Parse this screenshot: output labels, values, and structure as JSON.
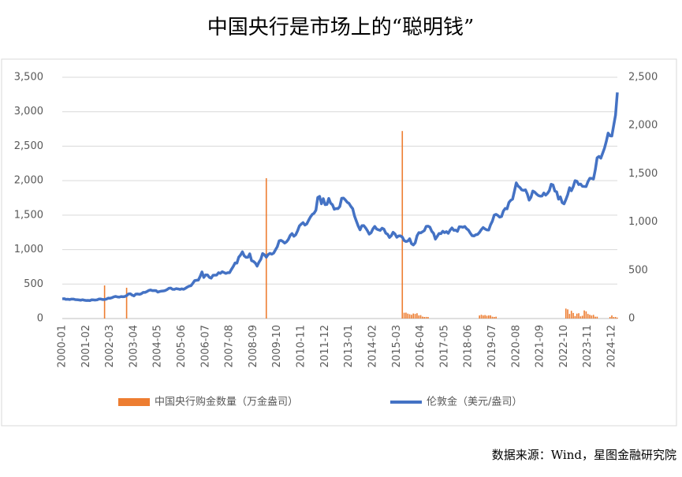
{
  "chart_data": {
    "type": "combo",
    "title": "中国央行是市场上的“聪明钱”",
    "source": "数据来源：Wind，星图金融研究院",
    "categories": [
      "2000-01",
      null,
      null,
      null,
      null,
      null,
      null,
      null,
      null,
      null,
      null,
      null,
      null,
      "2001-02",
      null,
      null,
      null,
      null,
      null,
      null,
      null,
      null,
      null,
      null,
      null,
      null,
      "2002-03",
      null,
      null,
      null,
      null,
      null,
      null,
      null,
      null,
      null,
      null,
      null,
      null,
      "2003-04",
      null,
      null,
      null,
      null,
      null,
      null,
      null,
      null,
      null,
      null,
      null,
      null,
      "2004-05",
      null,
      null,
      null,
      null,
      null,
      null,
      null,
      null,
      null,
      null,
      null,
      null,
      "2005-06",
      null,
      null,
      null,
      null,
      null,
      null,
      null,
      null,
      null,
      null,
      null,
      null,
      "2006-07",
      null,
      null,
      null,
      null,
      null,
      null,
      null,
      null,
      null,
      null,
      null,
      null,
      "2007-08",
      null,
      null,
      null,
      null,
      null,
      null,
      null,
      null,
      null,
      null,
      null,
      null,
      "2008-09",
      null,
      null,
      null,
      null,
      null,
      null,
      null,
      null,
      null,
      null,
      null,
      null,
      "2009-10",
      null,
      null,
      null,
      null,
      null,
      null,
      null,
      null,
      null,
      null,
      null,
      null,
      "2010-11",
      null,
      null,
      null,
      null,
      null,
      null,
      null,
      null,
      null,
      null,
      null,
      null,
      "2011-12",
      null,
      null,
      null,
      null,
      null,
      null,
      null,
      null,
      null,
      null,
      null,
      null,
      "2013-01",
      null,
      null,
      null,
      null,
      null,
      null,
      null,
      null,
      null,
      null,
      null,
      null,
      "2014-02",
      null,
      null,
      null,
      null,
      null,
      null,
      null,
      null,
      null,
      null,
      null,
      null,
      "2015-03",
      null,
      null,
      null,
      null,
      null,
      null,
      null,
      null,
      null,
      null,
      null,
      null,
      "2016-04",
      null,
      null,
      null,
      null,
      null,
      null,
      null,
      null,
      null,
      null,
      null,
      null,
      "2017-05",
      null,
      null,
      null,
      null,
      null,
      null,
      null,
      null,
      null,
      null,
      null,
      null,
      "2018-06",
      null,
      null,
      null,
      null,
      null,
      null,
      null,
      null,
      null,
      null,
      null,
      null,
      "2019-07",
      null,
      null,
      null,
      null,
      null,
      null,
      null,
      null,
      null,
      null,
      null,
      null,
      "2020-08",
      null,
      null,
      null,
      null,
      null,
      null,
      null,
      null,
      null,
      null,
      null,
      null,
      "2021-09",
      null,
      null,
      null,
      null,
      null,
      null,
      null,
      null,
      null,
      null,
      null,
      null,
      "2022-10",
      null,
      null,
      null,
      null,
      null,
      null,
      null,
      null,
      null,
      null,
      null,
      null,
      "2023-11",
      null,
      null,
      null,
      null,
      null,
      null,
      null,
      null,
      null,
      null,
      null,
      null,
      "2024-12",
      null,
      null,
      null
    ],
    "series": [
      {
        "name": "中国央行购金数量（万金盎司）",
        "type": "bar",
        "axis": "y2",
        "color": "#ed7d31",
        "values": [
          null,
          null,
          null,
          null,
          null,
          null,
          null,
          null,
          null,
          null,
          null,
          null,
          null,
          null,
          null,
          null,
          null,
          null,
          null,
          null,
          null,
          null,
          null,
          343,
          null,
          null,
          null,
          null,
          null,
          null,
          null,
          null,
          null,
          null,
          null,
          319,
          null,
          null,
          null,
          null,
          null,
          null,
          null,
          null,
          null,
          null,
          null,
          null,
          null,
          null,
          null,
          null,
          null,
          null,
          null,
          null,
          null,
          null,
          null,
          null,
          null,
          null,
          null,
          null,
          null,
          null,
          null,
          null,
          null,
          null,
          null,
          null,
          null,
          null,
          null,
          null,
          null,
          null,
          null,
          null,
          null,
          null,
          null,
          null,
          null,
          null,
          null,
          null,
          null,
          null,
          null,
          null,
          null,
          null,
          null,
          null,
          null,
          null,
          null,
          null,
          null,
          null,
          null,
          null,
          null,
          null,
          null,
          null,
          null,
          null,
          null,
          1454,
          null,
          null,
          null,
          null,
          null,
          null,
          null,
          null,
          null,
          null,
          null,
          null,
          null,
          null,
          null,
          null,
          null,
          null,
          null,
          null,
          null,
          null,
          null,
          null,
          null,
          null,
          null,
          null,
          null,
          null,
          null,
          null,
          null,
          null,
          null,
          null,
          null,
          null,
          null,
          null,
          null,
          null,
          null,
          null,
          null,
          null,
          null,
          null,
          null,
          null,
          null,
          null,
          null,
          null,
          null,
          null,
          null,
          null,
          null,
          null,
          null,
          null,
          null,
          null,
          null,
          null,
          null,
          null,
          null,
          null,
          null,
          null,
          null,
          1943,
          60,
          61,
          51,
          45,
          39,
          52,
          48,
          55,
          32,
          35,
          20,
          16,
          17,
          16,
          null,
          null,
          null,
          null,
          null,
          null,
          null,
          null,
          null,
          null,
          null,
          null,
          null,
          null,
          null,
          null,
          null,
          null,
          null,
          null,
          null,
          null,
          null,
          null,
          null,
          null,
          null,
          32,
          39,
          32,
          36,
          29,
          32,
          33,
          19,
          16,
          19,
          null,
          null,
          null,
          null,
          null,
          null,
          null,
          null,
          null,
          null,
          null,
          null,
          null,
          null,
          null,
          null,
          null,
          null,
          null,
          null,
          null,
          null,
          null,
          null,
          null,
          null,
          null,
          null,
          null,
          null,
          null,
          null,
          null,
          null,
          null,
          null,
          null,
          103,
          95,
          48,
          80,
          58,
          26,
          51,
          55,
          23,
          29,
          84,
          74,
          48,
          39,
          32,
          38,
          19,
          19,
          null,
          null,
          null,
          null,
          null,
          null,
          16,
          32,
          16,
          16,
          9
        ]
      },
      {
        "name": "伦敦金（美元/盎司）",
        "type": "line",
        "color": "#4472c4",
        "values": [
          285,
          288,
          278,
          280,
          275,
          282,
          282,
          275,
          273,
          270,
          266,
          272,
          266,
          262,
          263,
          260,
          272,
          270,
          268,
          272,
          283,
          283,
          276,
          276,
          282,
          296,
          294,
          302,
          314,
          321,
          313,
          310,
          319,
          316,
          319,
          333,
          356,
          359,
          340,
          328,
          355,
          356,
          351,
          360,
          379,
          379,
          390,
          407,
          414,
          405,
          406,
          404,
          384,
          392,
          398,
          400,
          406,
          420,
          439,
          442,
          424,
          423,
          434,
          429,
          422,
          431,
          424,
          438,
          456,
          470,
          476,
          510,
          549,
          555,
          557,
          610,
          676,
          596,
          633,
          632,
          598,
          586,
          627,
          629,
          631,
          664,
          655,
          679,
          667,
          655,
          665,
          665,
          712,
          754,
          806,
          803,
          889,
          922,
          968,
          909,
          888,
          889,
          939,
          839,
          829,
          806,
          760,
          816,
          858,
          943,
          924,
          890,
          928,
          945,
          934,
          949,
          996,
          1043,
          1127,
          1134,
          1118,
          1095,
          1113,
          1148,
          1205,
          1232,
          1193,
          1215,
          1271,
          1343,
          1370,
          1391,
          1356,
          1372,
          1424,
          1473,
          1510,
          1528,
          1572,
          1756,
          1772,
          1665,
          1739,
          1652,
          1656,
          1742,
          1673,
          1650,
          1585,
          1596,
          1594,
          1626,
          1744,
          1747,
          1721,
          1688,
          1670,
          1627,
          1593,
          1487,
          1414,
          1343,
          1286,
          1347,
          1348,
          1316,
          1275,
          1225,
          1244,
          1300,
          1336,
          1299,
          1287,
          1279,
          1311,
          1296,
          1238,
          1222,
          1176,
          1201,
          1251,
          1227,
          1179,
          1198,
          1199,
          1181,
          1131,
          1117,
          1125,
          1157,
          1086,
          1068,
          1097,
          1199,
          1246,
          1242,
          1259,
          1276,
          1337,
          1340,
          1326,
          1266,
          1236,
          1152,
          1192,
          1234,
          1231,
          1266,
          1246,
          1260,
          1236,
          1283,
          1314,
          1280,
          1283,
          1265,
          1331,
          1330,
          1324,
          1335,
          1303,
          1282,
          1238,
          1202,
          1198,
          1215,
          1221,
          1250,
          1291,
          1320,
          1300,
          1285,
          1284,
          1359,
          1413,
          1500,
          1511,
          1495,
          1471,
          1480,
          1560,
          1597,
          1591,
          1683,
          1715,
          1732,
          1847,
          1968,
          1921,
          1900,
          1866,
          1859,
          1867,
          1808,
          1718,
          1760,
          1850,
          1834,
          1807,
          1785,
          1776,
          1777,
          1821,
          1790,
          1816,
          1856,
          1948,
          1937,
          1849,
          1837,
          1732,
          1764,
          1681,
          1664,
          1726,
          1798,
          1898,
          1854,
          1913,
          2000,
          1991,
          1943,
          1951,
          1918,
          1916,
          1915,
          1985,
          2034,
          2033,
          2024,
          2158,
          2331,
          2351,
          2326,
          2398,
          2471,
          2571,
          2690,
          2651,
          2648,
          2800,
          2950,
          3280
        ]
      }
    ],
    "ylim": [
      0,
      3500
    ],
    "yticks": [
      0,
      500,
      {
        "value": 1000,
        "label": "1,000"
      },
      {
        "value": 1500,
        "label": "1,500"
      },
      {
        "value": 2000,
        "label": "2,000"
      },
      {
        "value": 2500,
        "label": "2,500"
      },
      {
        "value": 3000,
        "label": "3,000"
      },
      {
        "value": 3500,
        "label": "3,500"
      }
    ],
    "y2lim": [
      0,
      2500
    ],
    "y2ticks": [
      0,
      500,
      {
        "value": 1000,
        "label": "1,000"
      },
      {
        "value": 1500,
        "label": "1,500"
      },
      {
        "value": 2000,
        "label": "2,000"
      },
      {
        "value": 2500,
        "label": "2,500"
      }
    ],
    "grid": true,
    "legend": "bottom"
  }
}
